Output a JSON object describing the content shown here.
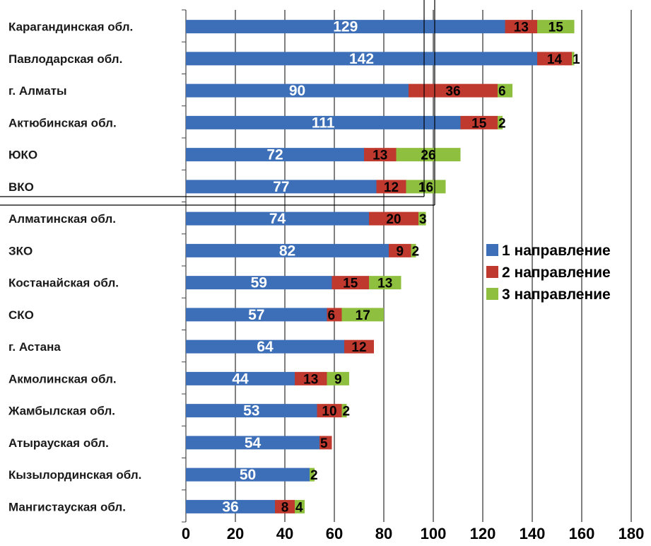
{
  "chart_data": {
    "type": "bar",
    "orientation": "horizontal",
    "stacked": true,
    "categories": [
      "Карагандинская обл.",
      "Павлодарская обл.",
      "г. Алматы",
      "Актюбинская обл.",
      "ЮКО",
      "ВКО",
      "Алматинская обл.",
      "ЗКО",
      "Костанайская обл.",
      "СКО",
      "г. Астана",
      "Акмолинская обл.",
      "Жамбылская обл.",
      "Атырауская обл.",
      "Кызылординская обл.",
      "Мангистауская обл."
    ],
    "series": [
      {
        "name": "1 направление",
        "color": "#3d6fb8",
        "values": [
          129,
          142,
          90,
          111,
          72,
          77,
          74,
          82,
          59,
          57,
          64,
          44,
          53,
          54,
          50,
          36
        ]
      },
      {
        "name": "2 направление",
        "color": "#c0392f",
        "values": [
          13,
          14,
          36,
          15,
          13,
          12,
          20,
          9,
          15,
          6,
          12,
          13,
          10,
          5,
          0,
          8
        ]
      },
      {
        "name": "3 направление",
        "color": "#8fbf3e",
        "values": [
          15,
          1,
          6,
          2,
          26,
          16,
          3,
          2,
          13,
          17,
          0,
          9,
          2,
          0,
          2,
          4
        ]
      }
    ],
    "xlim": [
      0,
      180
    ],
    "xticks": [
      0,
      20,
      40,
      60,
      80,
      100,
      120,
      140,
      160,
      180
    ],
    "grid": "vertical",
    "legend": "right"
  }
}
